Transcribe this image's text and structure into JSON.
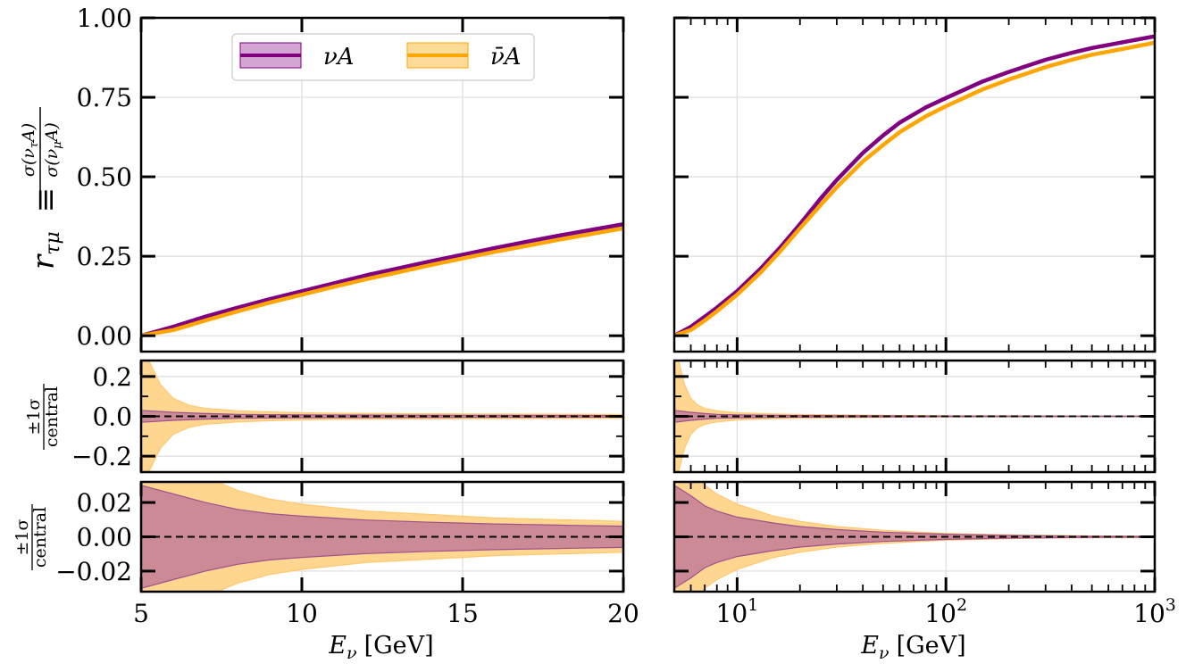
{
  "colors": {
    "nu": "#800080",
    "nubar": "#ffa500",
    "nu_band": "#b45f8c",
    "nubar_band": "#ffd690",
    "overlap_band": "#cc8a96"
  },
  "legend": {
    "entries": [
      "νA",
      "ν̄A"
    ],
    "placement": "top-center"
  },
  "labels": {
    "ylabel_main_symbol": "r",
    "ylabel_main_sub": "τμ",
    "ylabel_main_equiv": "≡",
    "ylabel_main_num": "σ(ν",
    "ylabel_main_num_sub": "τ",
    "ylabel_main_num_end": "A)",
    "ylabel_main_den": "σ(ν",
    "ylabel_main_den_sub": "μ",
    "ylabel_main_den_end": "A)",
    "ylabel_ratio_num": "±1σ",
    "ylabel_ratio_den": "central",
    "xlabel_sym": "E",
    "xlabel_sub": "ν",
    "xlabel_unit": "[GeV]"
  },
  "chart_data": [
    {
      "type": "line",
      "panel": "top-left",
      "xscale": "linear",
      "xlim": [
        5,
        20
      ],
      "ylim": [
        -0.05,
        1.0
      ],
      "xticks": [
        5,
        10,
        15,
        20
      ],
      "yticks": [
        "0.00",
        "0.25",
        "0.50",
        "0.75",
        "1.00"
      ],
      "grid": true,
      "series": [
        {
          "name": "νA",
          "x": [
            5,
            6,
            7,
            8,
            9,
            10,
            11,
            12,
            13,
            14,
            15,
            16,
            17,
            18,
            19,
            20
          ],
          "y": [
            0.0,
            0.028,
            0.06,
            0.088,
            0.115,
            0.14,
            0.165,
            0.19,
            0.212,
            0.234,
            0.255,
            0.276,
            0.296,
            0.315,
            0.333,
            0.351
          ]
        },
        {
          "name": "ν̄A",
          "x": [
            5,
            6,
            7,
            8,
            9,
            10,
            11,
            12,
            13,
            14,
            15,
            16,
            17,
            18,
            19,
            20
          ],
          "y": [
            0.0,
            0.018,
            0.048,
            0.077,
            0.104,
            0.129,
            0.154,
            0.178,
            0.2,
            0.222,
            0.243,
            0.264,
            0.283,
            0.302,
            0.32,
            0.338
          ]
        }
      ]
    },
    {
      "type": "line",
      "panel": "top-right",
      "xscale": "log",
      "xlim": [
        5,
        1000
      ],
      "ylim": [
        -0.05,
        1.0
      ],
      "xticks": [
        10,
        100,
        1000
      ],
      "grid": true,
      "series": [
        {
          "name": "νA",
          "x": [
            5,
            6,
            7,
            8,
            10,
            13,
            16,
            20,
            25,
            30,
            40,
            50,
            60,
            80,
            100,
            150,
            200,
            300,
            400,
            500,
            700,
            1000
          ],
          "y": [
            0.0,
            0.028,
            0.06,
            0.088,
            0.14,
            0.212,
            0.276,
            0.351,
            0.43,
            0.49,
            0.575,
            0.63,
            0.67,
            0.718,
            0.748,
            0.8,
            0.83,
            0.868,
            0.89,
            0.905,
            0.923,
            0.942
          ]
        },
        {
          "name": "ν̄A",
          "x": [
            5,
            6,
            7,
            8,
            10,
            13,
            16,
            20,
            25,
            30,
            40,
            50,
            60,
            80,
            100,
            150,
            200,
            300,
            400,
            500,
            700,
            1000
          ],
          "y": [
            0.0,
            0.018,
            0.048,
            0.077,
            0.129,
            0.2,
            0.264,
            0.338,
            0.41,
            0.467,
            0.548,
            0.6,
            0.64,
            0.69,
            0.722,
            0.775,
            0.806,
            0.845,
            0.868,
            0.884,
            0.902,
            0.922
          ]
        }
      ]
    },
    {
      "type": "area",
      "panel": "middle-left",
      "xscale": "linear",
      "xlim": [
        5,
        20
      ],
      "ylim": [
        -0.28,
        0.28
      ],
      "yticks": [
        "−0.2",
        "0.0",
        "0.2"
      ],
      "grid": true,
      "series": [
        {
          "name": "ν̄A",
          "x": [
            5,
            5.3,
            5.6,
            6,
            6.5,
            7,
            8,
            9,
            10,
            12,
            15,
            20
          ],
          "upper": [
            0.36,
            0.26,
            0.16,
            0.09,
            0.055,
            0.04,
            0.028,
            0.022,
            0.018,
            0.014,
            0.012,
            0.01
          ]
        },
        {
          "name": "νA",
          "x": [
            5,
            6,
            7,
            8,
            10,
            15,
            20
          ],
          "upper": [
            0.03,
            0.02,
            0.014,
            0.01,
            0.007,
            0.005,
            0.004
          ]
        }
      ]
    },
    {
      "type": "area",
      "panel": "middle-right",
      "xscale": "log",
      "xlim": [
        5,
        1000
      ],
      "ylim": [
        -0.28,
        0.28
      ],
      "grid": true,
      "series": [
        {
          "name": "ν̄A",
          "x": [
            5,
            5.3,
            5.6,
            6,
            6.5,
            7,
            8,
            10,
            15,
            20,
            50,
            100,
            1000
          ],
          "upper": [
            0.36,
            0.26,
            0.16,
            0.09,
            0.055,
            0.04,
            0.028,
            0.018,
            0.012,
            0.01,
            0.005,
            0.003,
            0.001
          ]
        },
        {
          "name": "νA",
          "x": [
            5,
            6,
            7,
            8,
            10,
            20,
            100,
            1000
          ],
          "upper": [
            0.03,
            0.02,
            0.014,
            0.01,
            0.007,
            0.004,
            0.002,
            0.001
          ]
        }
      ]
    },
    {
      "type": "area",
      "panel": "bottom-left",
      "xscale": "linear",
      "xlim": [
        5,
        20
      ],
      "ylim": [
        -0.032,
        0.032
      ],
      "xticks": [
        5,
        10,
        15,
        20
      ],
      "yticks": [
        "−0.02",
        "0.00",
        "0.02"
      ],
      "grid": true,
      "series": [
        {
          "name": "ν̄A",
          "x": [
            5,
            6,
            7,
            8,
            9,
            10,
            12,
            14,
            16,
            18,
            20
          ],
          "upper": [
            0.05,
            0.045,
            0.035,
            0.027,
            0.022,
            0.019,
            0.015,
            0.013,
            0.011,
            0.01,
            0.009
          ]
        },
        {
          "name": "νA",
          "x": [
            5,
            6,
            7,
            8,
            9,
            10,
            12,
            14,
            16,
            18,
            20
          ],
          "upper": [
            0.03,
            0.025,
            0.02,
            0.016,
            0.0135,
            0.012,
            0.0098,
            0.0085,
            0.0075,
            0.0068,
            0.0062
          ]
        }
      ]
    },
    {
      "type": "area",
      "panel": "bottom-right",
      "xscale": "log",
      "xlim": [
        5,
        1000
      ],
      "ylim": [
        -0.032,
        0.032
      ],
      "xticks": [
        10,
        100,
        1000
      ],
      "grid": true,
      "series": [
        {
          "name": "ν̄A",
          "x": [
            5,
            6,
            7,
            8,
            10,
            15,
            20,
            30,
            50,
            100,
            200,
            500,
            1000
          ],
          "upper": [
            0.05,
            0.04,
            0.03,
            0.025,
            0.019,
            0.012,
            0.009,
            0.006,
            0.0038,
            0.002,
            0.0011,
            0.0005,
            0.0003
          ]
        },
        {
          "name": "νA",
          "x": [
            5,
            6,
            7,
            8,
            10,
            15,
            20,
            30,
            50,
            100,
            200,
            500,
            1000
          ],
          "upper": [
            0.03,
            0.024,
            0.018,
            0.015,
            0.0115,
            0.008,
            0.006,
            0.0042,
            0.0027,
            0.0015,
            0.0008,
            0.0003,
            0.0002
          ]
        }
      ]
    }
  ]
}
